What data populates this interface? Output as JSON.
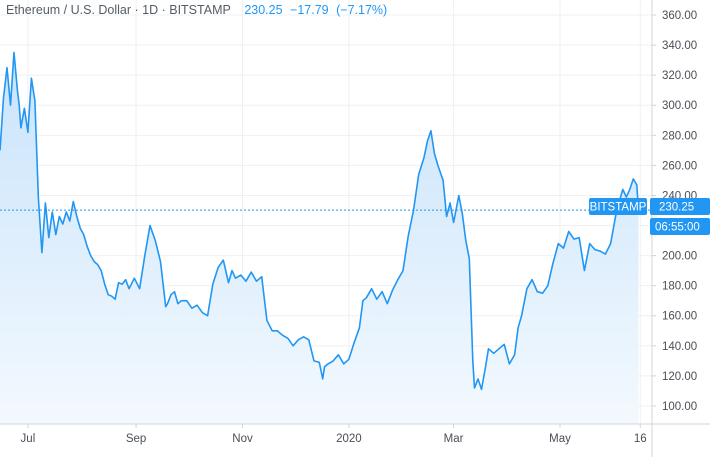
{
  "header": {
    "title": "Ethereum / U.S. Dollar · 1D · BITSTAMP",
    "last": "230.25",
    "change": "−17.79",
    "change_pct": "(−7.17%)"
  },
  "colors": {
    "line": "#2196f3",
    "fill_top": "#c9e3fb",
    "fill_bottom": "#f3f9fe",
    "grid": "#eef0f3",
    "axis": "#d0d4d9",
    "price_tag": "#2196f3"
  },
  "price_tags": {
    "exchange": "BITSTAMP",
    "price": "230.25",
    "countdown": "06:55:00"
  },
  "chart_data": {
    "type": "area",
    "title": "Ethereum / U.S. Dollar · 1D · BITSTAMP",
    "ylim": [
      88,
      370
    ],
    "xlim": [
      "2019-06-15",
      "2020-06-17"
    ],
    "y_ticks": [
      100,
      120,
      140,
      160,
      180,
      200,
      220,
      240,
      260,
      280,
      300,
      320,
      340,
      360
    ],
    "y_tick_labels": [
      "100.00",
      "120.00",
      "140.00",
      "160.00",
      "180.00",
      "200.00",
      "220.00",
      "240.00",
      "260.00",
      "280.00",
      "300.00",
      "320.00",
      "340.00",
      "360.00"
    ],
    "x_ticks": [
      {
        "label": "Jul",
        "date": "2019-07-01"
      },
      {
        "label": "Sep",
        "date": "2019-09-01"
      },
      {
        "label": "Nov",
        "date": "2019-11-01"
      },
      {
        "label": "2020",
        "date": "2020-01-01"
      },
      {
        "label": "Mar",
        "date": "2020-03-01"
      },
      {
        "label": "May",
        "date": "2020-05-01"
      },
      {
        "label": "16",
        "date": "2020-06-16"
      }
    ],
    "grid": true,
    "last_price": 230.25,
    "series": [
      {
        "x": [
          "2019-06-15",
          "2019-06-17",
          "2019-06-19",
          "2019-06-21",
          "2019-06-23",
          "2019-06-25",
          "2019-06-26",
          "2019-06-27",
          "2019-06-29",
          "2019-07-01",
          "2019-07-03",
          "2019-07-05",
          "2019-07-07",
          "2019-07-09",
          "2019-07-11",
          "2019-07-13",
          "2019-07-15",
          "2019-07-17",
          "2019-07-19",
          "2019-07-21",
          "2019-07-23",
          "2019-07-25",
          "2019-07-27",
          "2019-07-29",
          "2019-07-31",
          "2019-08-02",
          "2019-08-04",
          "2019-08-06",
          "2019-08-08",
          "2019-08-10",
          "2019-08-12",
          "2019-08-14",
          "2019-08-16",
          "2019-08-18",
          "2019-08-20",
          "2019-08-22",
          "2019-08-24",
          "2019-08-26",
          "2019-08-28",
          "2019-08-31",
          "2019-09-03",
          "2019-09-06",
          "2019-09-09",
          "2019-09-12",
          "2019-09-15",
          "2019-09-18",
          "2019-09-19",
          "2019-09-21",
          "2019-09-23",
          "2019-09-25",
          "2019-09-27",
          "2019-09-30",
          "2019-10-03",
          "2019-10-06",
          "2019-10-09",
          "2019-10-12",
          "2019-10-15",
          "2019-10-18",
          "2019-10-21",
          "2019-10-24",
          "2019-10-26",
          "2019-10-28",
          "2019-10-31",
          "2019-11-03",
          "2019-11-06",
          "2019-11-09",
          "2019-11-12",
          "2019-11-15",
          "2019-11-18",
          "2019-11-21",
          "2019-11-24",
          "2019-11-27",
          "2019-11-30",
          "2019-12-03",
          "2019-12-06",
          "2019-12-09",
          "2019-12-12",
          "2019-12-15",
          "2019-12-17",
          "2019-12-18",
          "2019-12-20",
          "2019-12-23",
          "2019-12-26",
          "2019-12-29",
          "2020-01-01",
          "2020-01-04",
          "2020-01-07",
          "2020-01-09",
          "2020-01-11",
          "2020-01-14",
          "2020-01-17",
          "2020-01-20",
          "2020-01-23",
          "2020-01-26",
          "2020-01-29",
          "2020-02-01",
          "2020-02-04",
          "2020-02-07",
          "2020-02-10",
          "2020-02-13",
          "2020-02-15",
          "2020-02-17",
          "2020-02-19",
          "2020-02-21",
          "2020-02-24",
          "2020-02-26",
          "2020-02-28",
          "2020-03-01",
          "2020-03-04",
          "2020-03-06",
          "2020-03-08",
          "2020-03-10",
          "2020-03-12",
          "2020-03-13",
          "2020-03-15",
          "2020-03-17",
          "2020-03-19",
          "2020-03-21",
          "2020-03-24",
          "2020-03-27",
          "2020-03-30",
          "2020-04-02",
          "2020-04-05",
          "2020-04-07",
          "2020-04-09",
          "2020-04-12",
          "2020-04-15",
          "2020-04-18",
          "2020-04-21",
          "2020-04-24",
          "2020-04-27",
          "2020-04-30",
          "2020-05-03",
          "2020-05-06",
          "2020-05-09",
          "2020-05-12",
          "2020-05-15",
          "2020-05-18",
          "2020-05-21",
          "2020-05-24",
          "2020-05-27",
          "2020-05-30",
          "2020-06-02",
          "2020-06-04",
          "2020-06-06",
          "2020-06-08",
          "2020-06-10",
          "2020-06-12",
          "2020-06-14",
          "2020-06-15"
        ],
        "y": [
          270,
          305,
          325,
          300,
          335,
          310,
          300,
          285,
          298,
          282,
          318,
          303,
          238,
          202,
          235,
          212,
          229,
          214,
          226,
          221,
          229,
          223,
          236,
          226,
          218,
          214,
          206,
          200,
          196,
          194,
          190,
          181,
          174,
          173,
          171,
          182,
          181,
          184,
          178,
          185,
          178,
          200,
          220,
          210,
          196,
          166,
          168,
          174,
          176,
          168,
          170,
          170,
          165,
          167,
          162,
          160,
          181,
          192,
          197,
          182,
          190,
          185,
          187,
          183,
          189,
          183,
          186,
          157,
          150,
          150,
          147,
          145,
          140,
          144,
          146,
          144,
          130,
          129,
          118,
          126,
          128,
          130,
          134,
          128,
          131,
          142,
          152,
          170,
          172,
          178,
          171,
          176,
          168,
          177,
          184,
          190,
          213,
          230,
          254,
          265,
          276,
          283,
          268,
          260,
          250,
          226,
          235,
          222,
          240,
          228,
          210,
          198,
          130,
          112,
          118,
          111,
          124,
          138,
          135,
          138,
          141,
          128,
          134,
          152,
          160,
          178,
          184,
          176,
          175,
          180,
          195,
          208,
          205,
          216,
          211,
          212,
          190,
          208,
          204,
          203,
          201,
          208,
          227,
          236,
          244,
          239,
          244,
          251,
          247,
          230
        ]
      }
    ]
  }
}
